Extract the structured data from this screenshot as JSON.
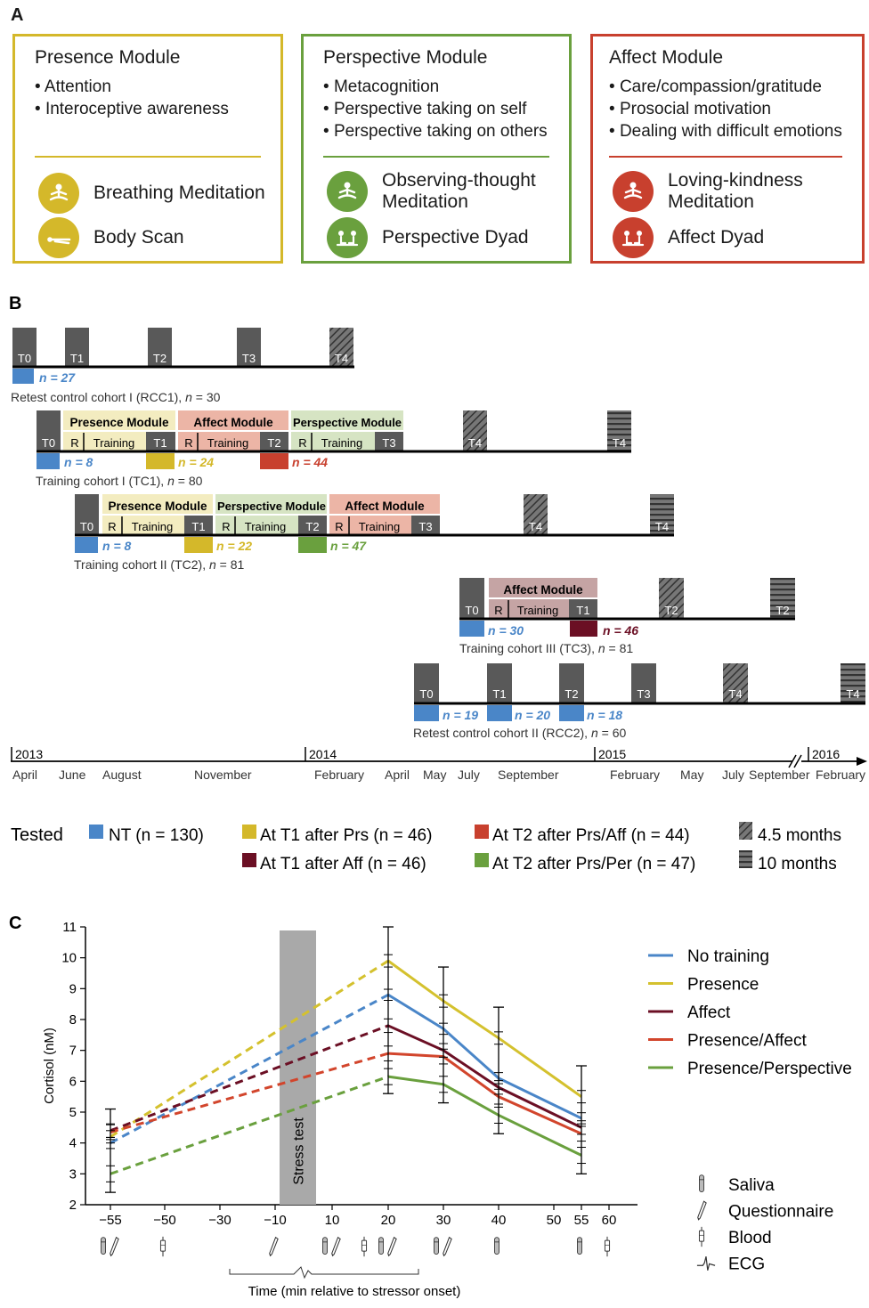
{
  "panels": {
    "a": "A",
    "b": "B",
    "c": "C"
  },
  "modules": [
    {
      "title": "Presence Module",
      "color": "#d4b82a",
      "bullets": [
        "Attention",
        "Interoceptive awareness"
      ],
      "practices": [
        {
          "label": "Breathing Meditation",
          "icon": "meditation-icon"
        },
        {
          "label": "Body Scan",
          "icon": "body-scan-icon"
        }
      ]
    },
    {
      "title": "Perspective Module",
      "color": "#6aa03e",
      "bullets": [
        "Metacognition",
        "Perspective taking on self",
        "Perspective taking on others"
      ],
      "practices": [
        {
          "label": "Observing-thought Meditation",
          "icon": "meditation-icon"
        },
        {
          "label": "Perspective Dyad",
          "icon": "dyad-icon"
        }
      ]
    },
    {
      "title": "Affect Module",
      "color": "#c8402e",
      "bullets": [
        "Care/compassion/gratitude",
        "Prosocial motivation",
        "Dealing with difficult emotions"
      ],
      "practices": [
        {
          "label": "Loving-kindness Meditation",
          "icon": "meditation-icon"
        },
        {
          "label": "Affect Dyad",
          "icon": "dyad-icon"
        }
      ]
    }
  ],
  "timeline": {
    "cohorts": [
      {
        "label": "Retest control cohort I (RCC1), n = 30",
        "label_pre": "Retest control cohort I (RCC1), ",
        "n_total": "30"
      },
      {
        "label": "Training cohort I (TC1), n = 80",
        "label_pre": "Training cohort I (TC1), ",
        "n_total": "80"
      },
      {
        "label": "Training cohort II (TC2), n = 81",
        "label_pre": "Training cohort II (TC2), ",
        "n_total": "81"
      },
      {
        "label": "Training cohort III (TC3), n = 81",
        "label_pre": "Training cohort III (TC3), ",
        "n_total": "81"
      },
      {
        "label": "Retest control cohort II (RCC2), n = 60",
        "label_pre": "Retest control cohort II (RCC2), ",
        "n_total": "60"
      }
    ],
    "timepoints": [
      "T0",
      "T1",
      "T2",
      "T3",
      "T4"
    ],
    "module_names": {
      "presence": "Presence Module",
      "affect": "Affect Module",
      "perspective": "Perspective Module"
    },
    "sub_labels": {
      "r": "R",
      "training": "Training"
    },
    "n_labels": {
      "rcc1_t0": "n = 27",
      "tc1_t0": "n = 8",
      "tc1_t1": "n = 24",
      "tc1_t2": "n = 44",
      "tc2_t0": "n = 8",
      "tc2_t1": "n = 22",
      "tc2_t2": "n = 47",
      "tc3_t0": "n = 30",
      "tc3_t1": "n = 46",
      "rcc2_t0": "n = 19",
      "rcc2_t1": "n = 20",
      "rcc2_t2": "n = 18"
    },
    "years": [
      "2013",
      "2014",
      "2015",
      "2016"
    ],
    "months": [
      "April",
      "June",
      "August",
      "November",
      "February",
      "April",
      "May",
      "July",
      "September",
      "February",
      "May",
      "July",
      "September",
      "February"
    ]
  },
  "legend_b": {
    "title": "Tested",
    "items": [
      {
        "label": "NT (n = 130)",
        "color": "#4a86c8"
      },
      {
        "label": "At T1 after Prs (n = 46)",
        "color": "#d4b82a"
      },
      {
        "label": "At T2 after Prs/Aff (n = 44)",
        "color": "#c8402e"
      },
      {
        "label": "At T1 after Aff (n = 46)",
        "color": "#6b0f24"
      },
      {
        "label": "At T2 after Prs/Per (n = 47)",
        "color": "#6aa03e"
      },
      {
        "label": "4.5 months",
        "pattern": "hatched"
      },
      {
        "label": "10 months",
        "pattern": "striped"
      }
    ]
  },
  "chart_data": {
    "type": "line",
    "xlabel": "Time (min relative to stressor onset)",
    "ylabel": "Cortisol (nM)",
    "ylim": [
      2,
      11
    ],
    "yticks": [
      2,
      3,
      4,
      5,
      6,
      7,
      8,
      9,
      10,
      11
    ],
    "xticks": [
      -55,
      -50,
      -30,
      -10,
      10,
      20,
      30,
      40,
      50,
      55,
      60
    ],
    "stress_test": {
      "label": "Stress test",
      "x_start": 0,
      "x_end": 5
    },
    "x_pre": -55,
    "x_post": [
      20,
      30,
      40,
      55
    ],
    "series": [
      {
        "name": "No training",
        "color": "#4a86c8",
        "pre": 4.0,
        "values": [
          8.8,
          7.7,
          6.1,
          4.8
        ]
      },
      {
        "name": "Presence",
        "color": "#d4c12e",
        "pre": 4.2,
        "values": [
          9.9,
          8.6,
          7.4,
          5.5
        ]
      },
      {
        "name": "Affect",
        "color": "#6b0f24",
        "pre": 4.4,
        "values": [
          7.8,
          7.0,
          5.8,
          4.5
        ]
      },
      {
        "name": "Presence/Affect",
        "color": "#d2452c",
        "pre": 4.35,
        "values": [
          6.9,
          6.8,
          5.5,
          4.3
        ]
      },
      {
        "name": "Presence/Perspective",
        "color": "#6aa03e",
        "pre": 3.0,
        "values": [
          6.15,
          5.9,
          4.9,
          3.6
        ]
      }
    ],
    "error_bars": [
      {
        "x": -55,
        "low": 2.4,
        "high": 5.1
      },
      {
        "x": 20,
        "low": 5.6,
        "high": 11.0
      },
      {
        "x": 30,
        "low": 5.3,
        "high": 9.7
      },
      {
        "x": 40,
        "low": 4.3,
        "high": 8.4
      },
      {
        "x": 55,
        "low": 3.0,
        "high": 6.5
      }
    ],
    "measure_legend": [
      "Saliva",
      "Questionnaire",
      "Blood",
      "ECG"
    ]
  }
}
